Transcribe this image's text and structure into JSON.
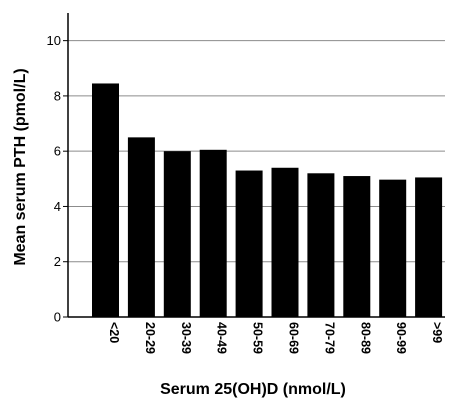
{
  "chart_data": {
    "type": "bar",
    "categories": [
      "<20",
      "20-29",
      "30-39",
      "40-49",
      "50-59",
      "60-69",
      "70-79",
      "80-89",
      "90-99",
      ">99"
    ],
    "values": [
      8.45,
      6.5,
      6.0,
      6.05,
      5.3,
      5.4,
      5.2,
      5.1,
      4.97,
      5.05
    ],
    "xlabel": "Serum 25(OH)D (nmol/L)",
    "ylabel": "Mean serum PTH (pmol/L)",
    "ylim": [
      0,
      11
    ],
    "yticks": [
      0,
      2,
      4,
      6,
      8,
      10
    ],
    "grid": true,
    "bar_color": "#000000",
    "grid_color": "#8c8c8c"
  }
}
